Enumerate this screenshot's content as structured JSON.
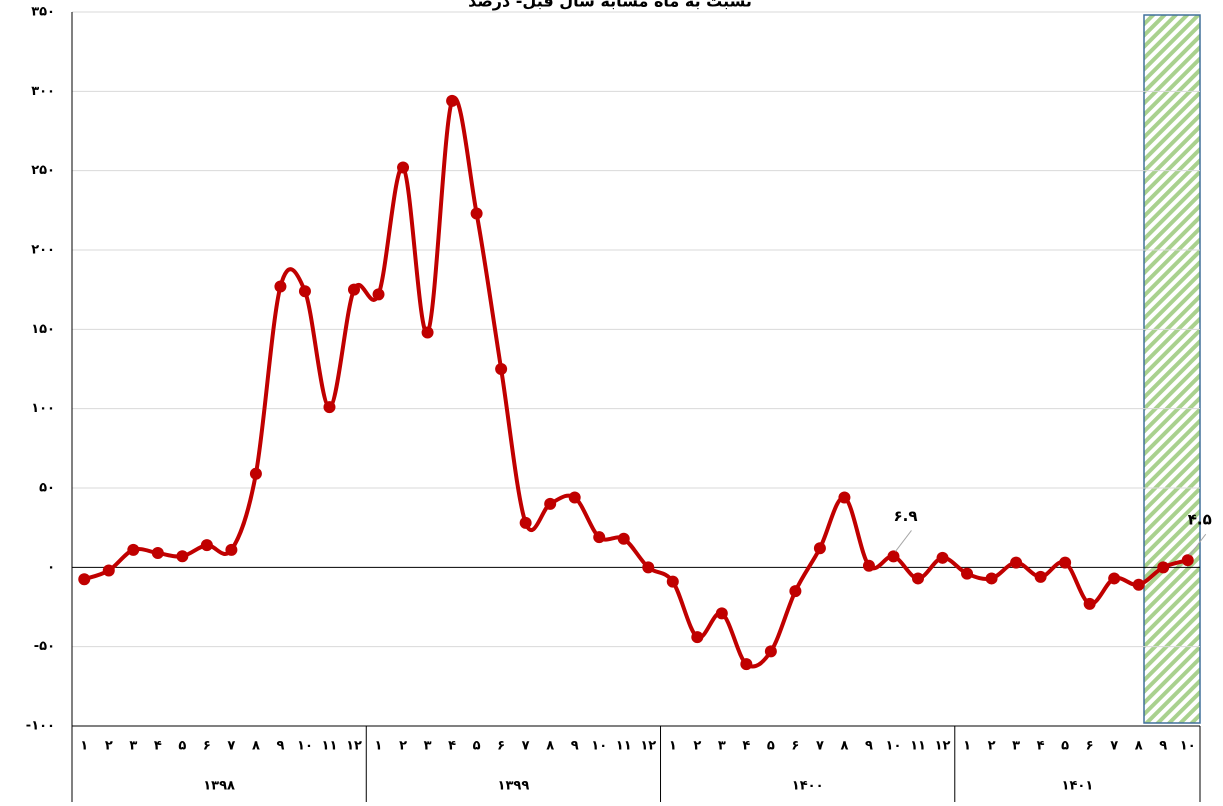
{
  "chart_data": {
    "type": "line",
    "title": "نسبت به ماه مشابه سال قبل- درصد",
    "groups": [
      {
        "label": "۱۳۹۸",
        "categories": [
          "۱",
          "۲",
          "۳",
          "۴",
          "۵",
          "۶",
          "۷",
          "۸",
          "۹",
          "۱۰",
          "۱۱",
          "۱۲"
        ]
      },
      {
        "label": "۱۳۹۹",
        "categories": [
          "۱",
          "۲",
          "۳",
          "۴",
          "۵",
          "۶",
          "۷",
          "۸",
          "۹",
          "۱۰",
          "۱۱",
          "۱۲"
        ]
      },
      {
        "label": "۱۴۰۰",
        "categories": [
          "۱",
          "۲",
          "۳",
          "۴",
          "۵",
          "۶",
          "۷",
          "۸",
          "۹",
          "۱۰",
          "۱۱",
          "۱۲"
        ]
      },
      {
        "label": "۱۴۰۱",
        "categories": [
          "۱",
          "۲",
          "۳",
          "۴",
          "۵",
          "۶",
          "۷",
          "۸",
          "۹",
          "۱۰"
        ]
      }
    ],
    "series": [
      {
        "color": "#c00000",
        "values": [
          -7.5,
          -2,
          11,
          9,
          7,
          14,
          11,
          59,
          177,
          174,
          101,
          175,
          172,
          252,
          148,
          294,
          223,
          125,
          28,
          40,
          44,
          19,
          18,
          0,
          -9,
          -44,
          -29,
          -61,
          -53,
          -15,
          12,
          44,
          1,
          6.9,
          -7,
          6,
          -4,
          -7,
          3,
          -6,
          3,
          -23,
          -7,
          -11,
          0,
          4.5
        ],
        "value_labels": [
          null,
          null,
          null,
          null,
          null,
          null,
          null,
          null,
          null,
          null,
          null,
          null,
          null,
          null,
          null,
          null,
          null,
          null,
          null,
          null,
          null,
          null,
          null,
          null,
          null,
          null,
          null,
          null,
          null,
          null,
          null,
          null,
          null,
          "۶.۹",
          null,
          null,
          null,
          null,
          null,
          null,
          null,
          null,
          null,
          null,
          null,
          "۴.۵"
        ]
      }
    ],
    "ylim": [
      -100,
      350
    ],
    "yticks": [
      {
        "value": -100,
        "label": "-۱۰۰"
      },
      {
        "value": -50,
        "label": "-۵۰"
      },
      {
        "value": 0,
        "label": "۰"
      },
      {
        "value": 50,
        "label": "۵۰"
      },
      {
        "value": 100,
        "label": "۱۰۰"
      },
      {
        "value": 150,
        "label": "۱۵۰"
      },
      {
        "value": 200,
        "label": "۲۰۰"
      },
      {
        "value": 250,
        "label": "۲۵۰"
      },
      {
        "value": 300,
        "label": "۳۰۰"
      },
      {
        "value": 350,
        "label": "۳۵۰"
      }
    ],
    "grid": true
  }
}
